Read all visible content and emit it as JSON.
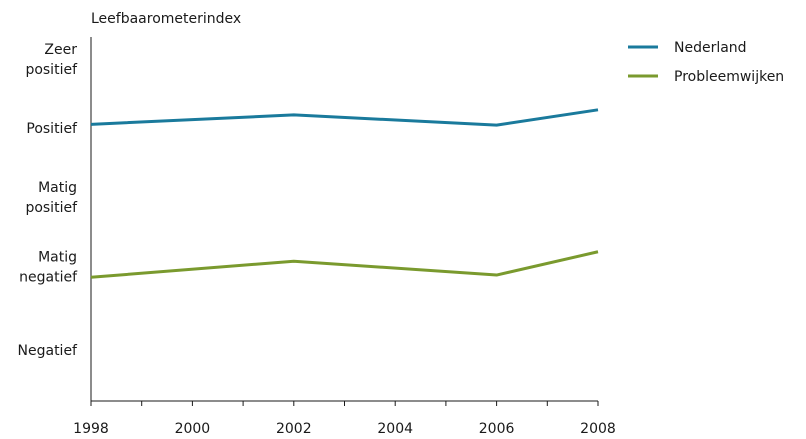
{
  "chart_data": {
    "type": "line",
    "title": "",
    "ylabel": "Leefbaarometerindex",
    "xlabel": "",
    "x": [
      1998,
      2002,
      2006,
      2008
    ],
    "xticks": [
      1998,
      1999,
      2000,
      2001,
      2002,
      2003,
      2004,
      2005,
      2006,
      2007,
      2008
    ],
    "xtick_labels": [
      "1998",
      "2000",
      "2002",
      "2004",
      "2006",
      "2008"
    ],
    "xlim": [
      1998,
      2008
    ],
    "ylim": [
      0,
      5
    ],
    "ycategories": [
      {
        "lines": [
          "Zeer",
          "positief"
        ],
        "value": 4.7
      },
      {
        "lines": [
          "Positief"
        ],
        "value": 3.75
      },
      {
        "lines": [
          "Matig",
          "positief"
        ],
        "value": 2.8
      },
      {
        "lines": [
          "Matig",
          "negatief"
        ],
        "value": 1.85
      },
      {
        "lines": [
          "Negatief"
        ],
        "value": 0.7
      }
    ],
    "series": [
      {
        "name": "Nederland",
        "color": "#1a7a9c",
        "values": [
          3.8,
          3.93,
          3.79,
          4.0
        ]
      },
      {
        "name": "Probleemwijken",
        "color": "#7a9a2e",
        "values": [
          1.7,
          1.92,
          1.73,
          2.05
        ]
      }
    ],
    "grid": false,
    "legend_position": "top-right"
  }
}
